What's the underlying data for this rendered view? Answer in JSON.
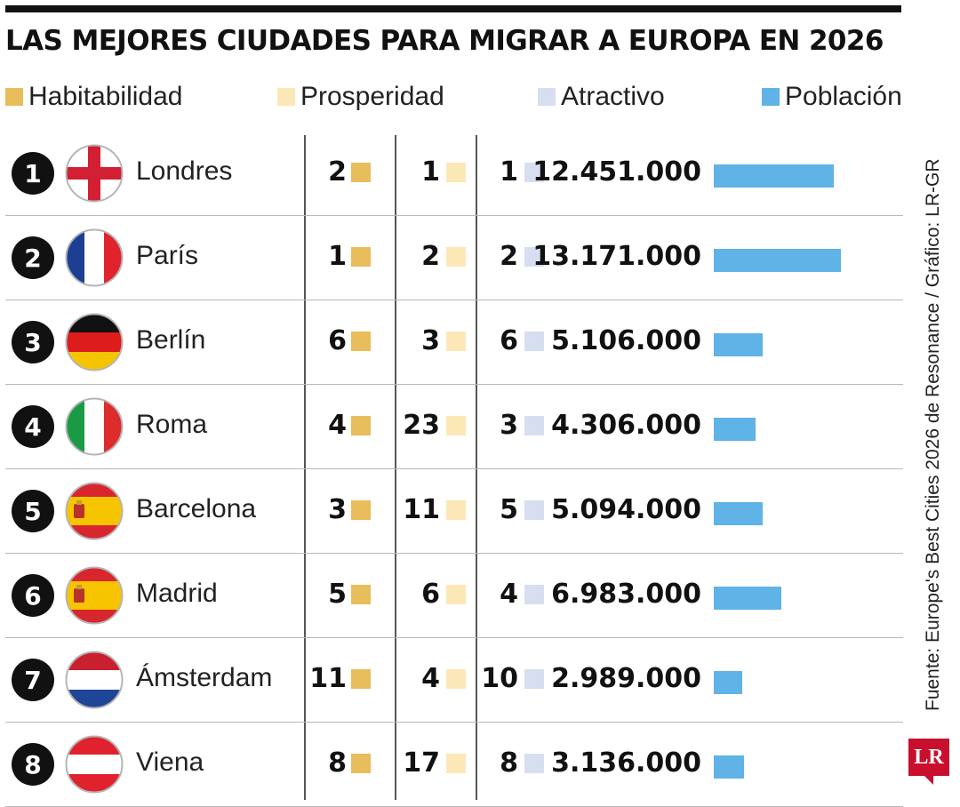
{
  "title": "LAS MEJORES CIUDADES PARA MIGRAR A EUROPA EN 2026",
  "legend": [
    {
      "label": "Habitabilidad",
      "color": "#e8bd5c"
    },
    {
      "label": "Prosperidad",
      "color": "#fce7b6"
    },
    {
      "label": "Atractivo",
      "color": "#d7def0"
    },
    {
      "label": "Población",
      "color": "#5fb3e6"
    }
  ],
  "source": "Fuente: Europe's Best Cities 2026 de Resonance / Gráfico: LR-GR",
  "logo_text": "LR",
  "chart_data": {
    "type": "table",
    "columns": [
      "Habitabilidad",
      "Prosperidad",
      "Atractivo",
      "Población"
    ],
    "rows": [
      {
        "rank": "1",
        "city": "Londres",
        "flag": "england",
        "habitabilidad": "2",
        "prosperidad": "1",
        "atractivo": "1",
        "poblacion_label": "12.451.000",
        "poblacion": 12451000
      },
      {
        "rank": "2",
        "city": "París",
        "flag": "france",
        "habitabilidad": "1",
        "prosperidad": "2",
        "atractivo": "2",
        "poblacion_label": "13.171.000",
        "poblacion": 13171000
      },
      {
        "rank": "3",
        "city": "Berlín",
        "flag": "germany",
        "habitabilidad": "6",
        "prosperidad": "3",
        "atractivo": "6",
        "poblacion_label": "5.106.000",
        "poblacion": 5106000
      },
      {
        "rank": "4",
        "city": "Roma",
        "flag": "italy",
        "habitabilidad": "4",
        "prosperidad": "23",
        "atractivo": "3",
        "poblacion_label": "4.306.000",
        "poblacion": 4306000
      },
      {
        "rank": "5",
        "city": "Barcelona",
        "flag": "spain",
        "habitabilidad": "3",
        "prosperidad": "11",
        "atractivo": "5",
        "poblacion_label": "5.094.000",
        "poblacion": 5094000
      },
      {
        "rank": "6",
        "city": "Madrid",
        "flag": "spain",
        "habitabilidad": "5",
        "prosperidad": "6",
        "atractivo": "4",
        "poblacion_label": "6.983.000",
        "poblacion": 6983000
      },
      {
        "rank": "7",
        "city": "Ámsterdam",
        "flag": "netherlands",
        "habitabilidad": "11",
        "prosperidad": "4",
        "atractivo": "10",
        "poblacion_label": "2.989.000",
        "poblacion": 2989000
      },
      {
        "rank": "8",
        "city": "Viena",
        "flag": "austria",
        "habitabilidad": "8",
        "prosperidad": "17",
        "atractivo": "8",
        "poblacion_label": "3.136.000",
        "poblacion": 3136000
      }
    ]
  }
}
